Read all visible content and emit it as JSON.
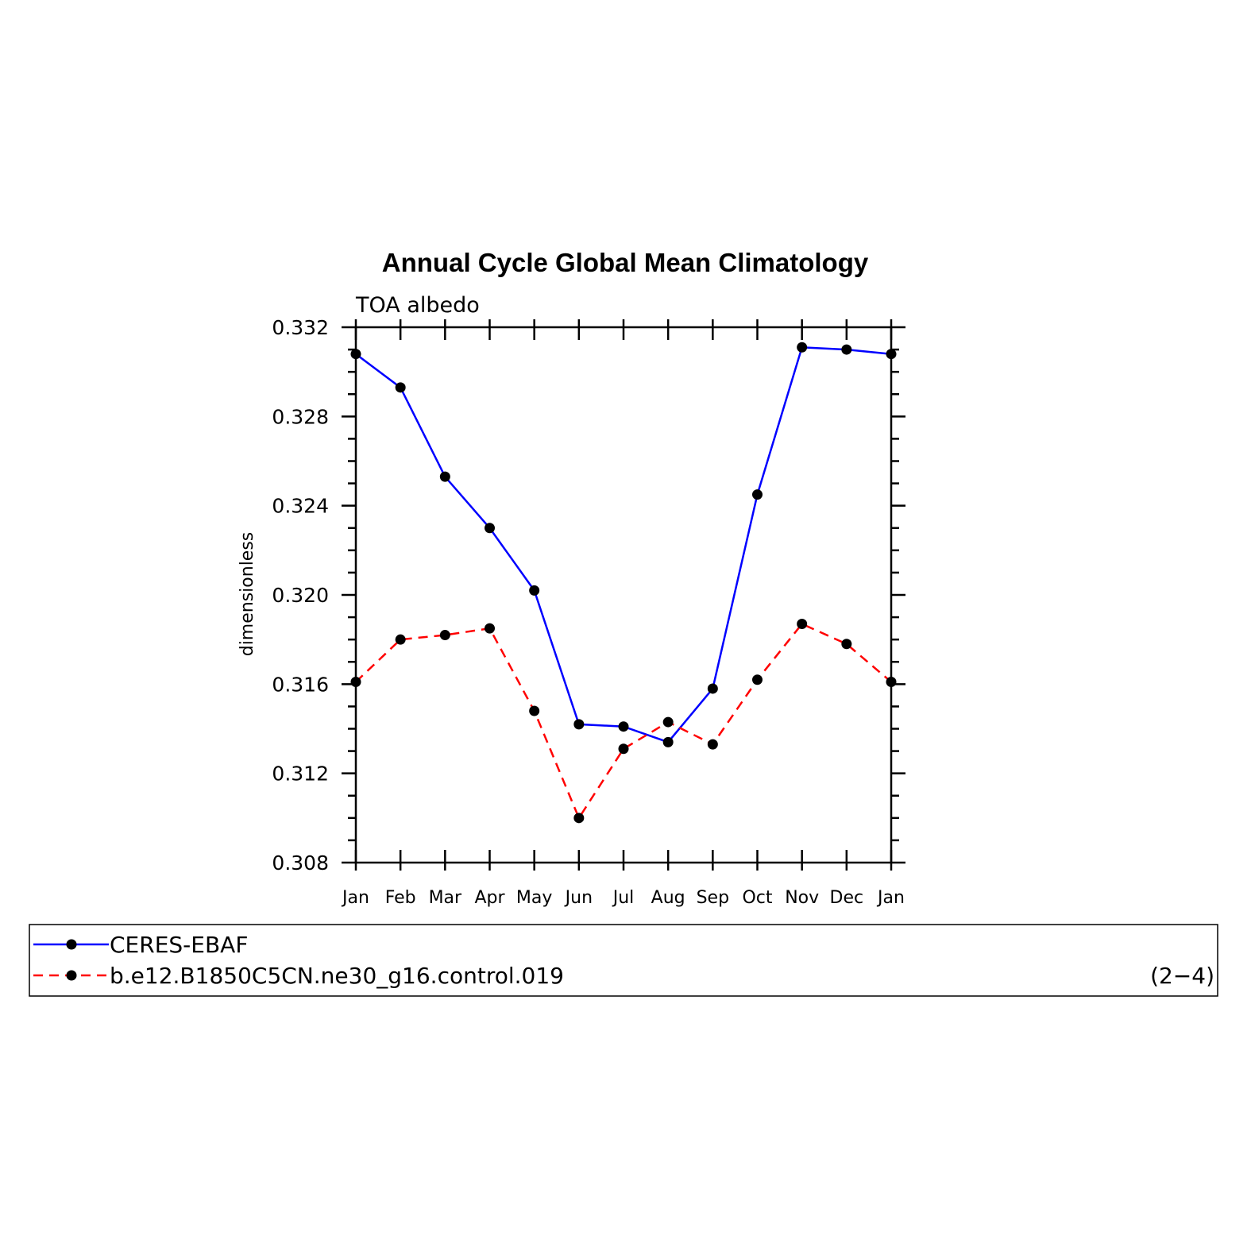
{
  "chart_data": {
    "type": "line",
    "title": "Annual Cycle Global Mean Climatology",
    "subtitle": "TOA albedo",
    "xlabel": "",
    "ylabel": "dimensionless",
    "categories": [
      "Jan",
      "Feb",
      "Mar",
      "Apr",
      "May",
      "Jun",
      "Jul",
      "Aug",
      "Sep",
      "Oct",
      "Nov",
      "Dec",
      "Jan"
    ],
    "yticks": [
      "0.308",
      "0.312",
      "0.316",
      "0.320",
      "0.324",
      "0.328",
      "0.332"
    ],
    "ylim": [
      0.308,
      0.332
    ],
    "grid": false,
    "legend_position": "bottom",
    "series": [
      {
        "name": "CERES-EBAF",
        "color": "#0000ff",
        "line_style": "solid",
        "marker": "filled-circle",
        "values": [
          0.3308,
          0.3293,
          0.3253,
          0.323,
          0.3202,
          0.3142,
          0.3141,
          0.3134,
          0.3158,
          0.3245,
          0.3311,
          0.331,
          0.3308
        ]
      },
      {
        "name": "b.e12.B1850C5CN.ne30_g16.control.019",
        "color": "#ff0000",
        "line_style": "dashed",
        "marker": "filled-circle",
        "values": [
          0.3161,
          0.318,
          0.3182,
          0.3185,
          0.3148,
          0.31,
          0.3131,
          0.3143,
          0.3133,
          0.3162,
          0.3187,
          0.3178,
          0.3161
        ]
      }
    ],
    "panel_label": "(2−4)"
  }
}
